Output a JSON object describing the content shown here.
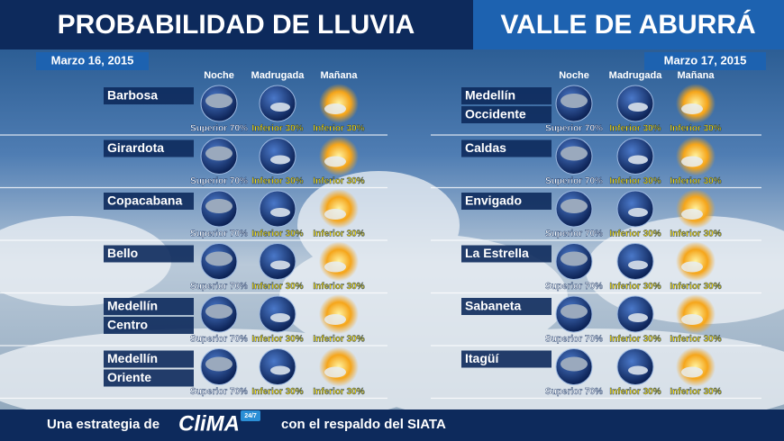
{
  "header": {
    "title_left": "PROBABILIDAD DE LLUVIA",
    "title_right": "VALLE DE ABURRÁ"
  },
  "panels": [
    {
      "date": "Marzo 16, 2015",
      "columns": [
        "Noche",
        "Madrugada",
        "Mañana"
      ],
      "rows": [
        {
          "name": [
            "Barbosa"
          ],
          "forecast": [
            "Superior 70%",
            "Inferior 30%",
            "Inferior 30%"
          ]
        },
        {
          "name": [
            "Girardota"
          ],
          "forecast": [
            "Superior 70%",
            "Inferior 30%",
            "Inferior 30%"
          ]
        },
        {
          "name": [
            "Copacabana"
          ],
          "forecast": [
            "Superior 70%",
            "Inferior 30%",
            "Inferior 30%"
          ]
        },
        {
          "name": [
            "Bello"
          ],
          "forecast": [
            "Superior 70%",
            "Inferior 30%",
            "Inferior 30%"
          ]
        },
        {
          "name": [
            "Medellín",
            "Centro"
          ],
          "forecast": [
            "Superior 70%",
            "Inferior 30%",
            "Inferior 30%"
          ]
        },
        {
          "name": [
            "Medellín",
            "Oriente"
          ],
          "forecast": [
            "Superior 70%",
            "Inferior 30%",
            "Inferior 30%"
          ]
        }
      ]
    },
    {
      "date": "Marzo 17, 2015",
      "columns": [
        "Noche",
        "Madrugada",
        "Mañana"
      ],
      "rows": [
        {
          "name": [
            "Medellín",
            "Occidente"
          ],
          "forecast": [
            "Superior 70%",
            "Inferior 30%",
            "Inferior 30%"
          ]
        },
        {
          "name": [
            "Caldas"
          ],
          "forecast": [
            "Superior 70%",
            "Inferior 30%",
            "Inferior 30%"
          ]
        },
        {
          "name": [
            "Envigado"
          ],
          "forecast": [
            "Superior 70%",
            "Inferior 30%",
            "Inferior 30%"
          ]
        },
        {
          "name": [
            "La Estrella"
          ],
          "forecast": [
            "Superior 70%",
            "Inferior 30%",
            "Inferior 30%"
          ]
        },
        {
          "name": [
            "Sabaneta"
          ],
          "forecast": [
            "Superior 70%",
            "Inferior 30%",
            "Inferior 30%"
          ]
        },
        {
          "name": [
            "Itagüí"
          ],
          "forecast": [
            "Superior 70%",
            "Inferior 30%",
            "Inferior 30%"
          ]
        }
      ]
    }
  ],
  "footer": {
    "prefix": "Una estrategia de",
    "brand": "CliMA",
    "badge": "24/7",
    "suffix": "con el respaldo del SIATA"
  }
}
